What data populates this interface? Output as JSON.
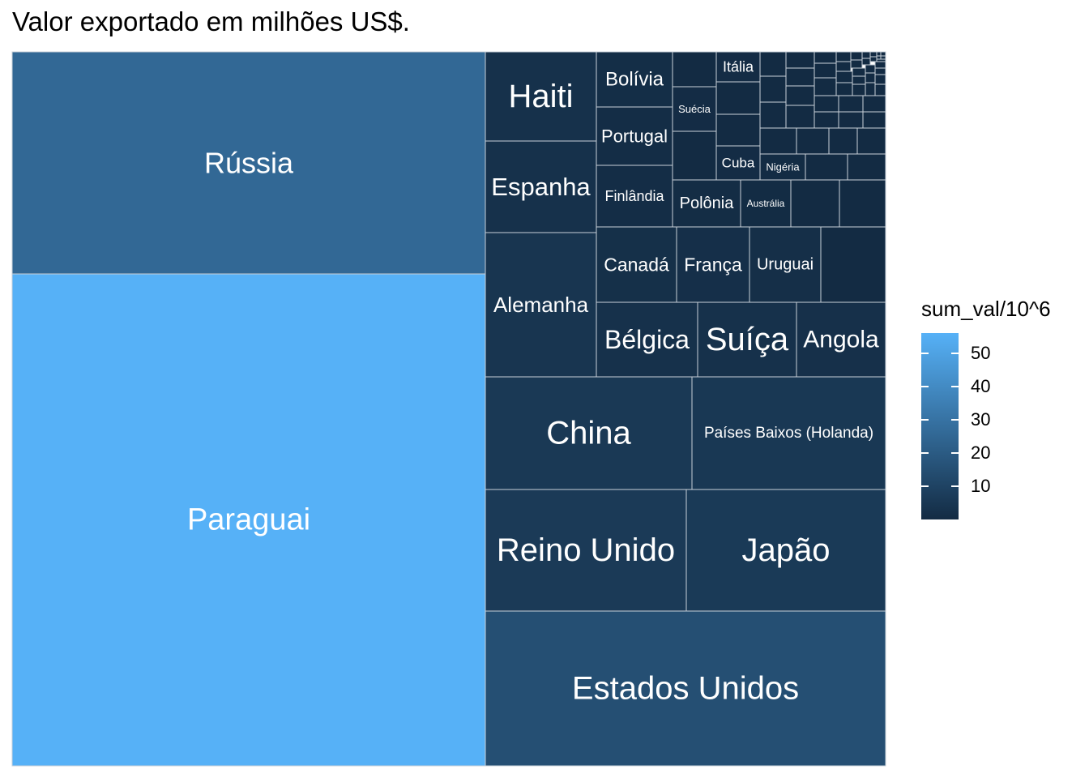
{
  "chart_data": {
    "type": "treemap",
    "title": "Valor exportado em milhões US$.",
    "fill_scale": {
      "name": "sum_val/10^6",
      "low_color": "#132b43",
      "high_color": "#56b1f7",
      "min": 0,
      "max": 56,
      "ticks": [
        10,
        20,
        30,
        40,
        50
      ]
    },
    "items": [
      {
        "label": "Paraguai",
        "value": 56
      },
      {
        "label": "Rússia",
        "value": 25.6
      },
      {
        "label": "Estados Unidos",
        "value": 15
      },
      {
        "label": "Reino Unido",
        "value": 6.3
      },
      {
        "label": "Japão",
        "value": 6.1
      },
      {
        "label": "China",
        "value": 5.7
      },
      {
        "label": "Países Baixos (Holanda)",
        "value": 5.3
      },
      {
        "label": "Alemanha",
        "value": 4.1
      },
      {
        "label": "Bélgica",
        "value": 2.4
      },
      {
        "label": "Suíça",
        "value": 2.4
      },
      {
        "label": "Angola",
        "value": 2.2
      },
      {
        "label": "Espanha",
        "value": 2.6
      },
      {
        "label": "Haiti",
        "value": 2.6
      },
      {
        "label": "Canadá",
        "value": 1.9
      },
      {
        "label": "França",
        "value": 1.8
      },
      {
        "label": "Uruguai",
        "value": 1.7
      },
      {
        "label": "Bolívia",
        "value": 1.1
      },
      {
        "label": "Portugal",
        "value": 1.0
      },
      {
        "label": "Finlândia",
        "value": 1.0
      },
      {
        "label": "Polônia",
        "value": 0.7
      },
      {
        "label": "Itália",
        "value": 0.5
      },
      {
        "label": "Suécia",
        "value": 0.5
      },
      {
        "label": "Cuba",
        "value": 0.5
      },
      {
        "label": "Nigéria",
        "value": 0.3
      },
      {
        "label": "Austrália",
        "value": 0.4
      }
    ]
  }
}
